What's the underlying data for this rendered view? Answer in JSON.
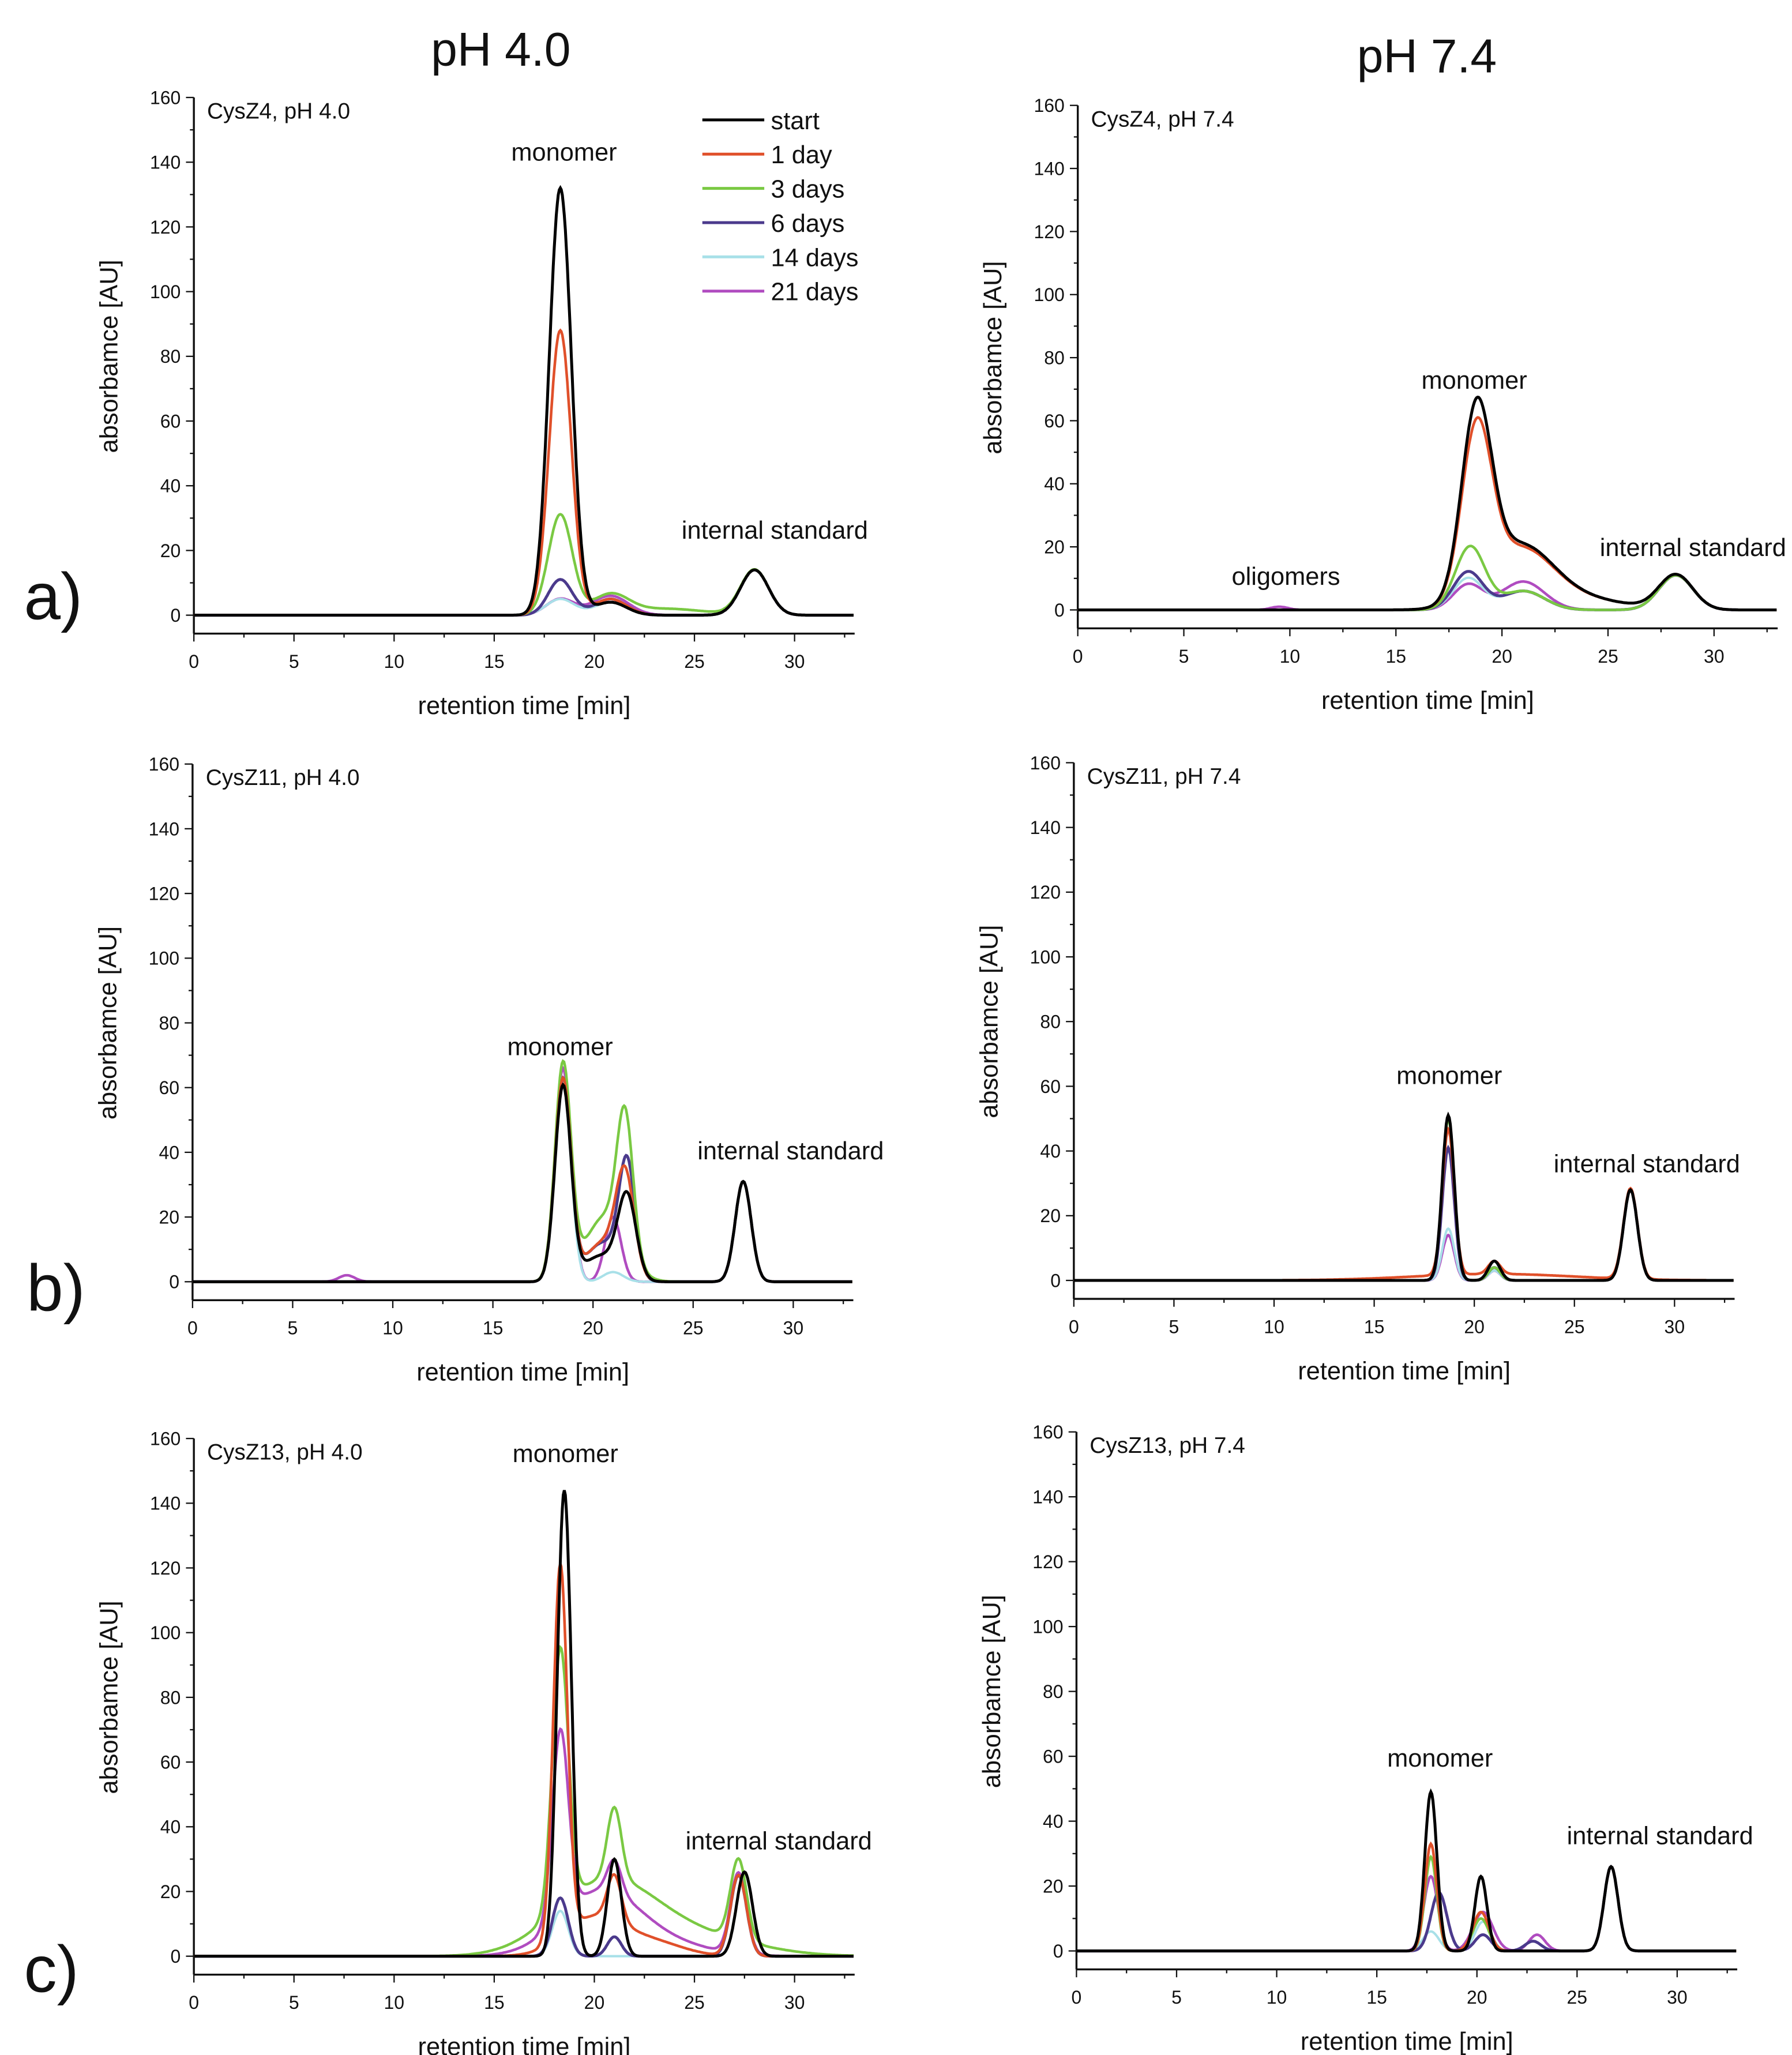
{
  "headers": [
    "pH 4.0",
    "pH 7.4"
  ],
  "panel_labels": [
    "a)",
    "b)",
    "c)"
  ],
  "legend": [
    {
      "name": "start",
      "color": "#000000"
    },
    {
      "name": "1 day",
      "color": "#e0502a"
    },
    {
      "name": "3 days",
      "color": "#7ac943"
    },
    {
      "name": "6 days",
      "color": "#4b3a8c"
    },
    {
      "name": "14 days",
      "color": "#a8e0e8"
    },
    {
      "name": "21 days",
      "color": "#b04cc0"
    }
  ],
  "chart_data": [
    {
      "type": "line",
      "title": "CysZ4, pH 4.0",
      "xlabel": "retention time [min]",
      "ylabel": "absorbamce [AU]",
      "xlim": [
        0,
        33
      ],
      "ylim": [
        0,
        160
      ],
      "xticks": [
        0,
        5,
        10,
        15,
        20,
        25,
        30
      ],
      "yticks": [
        0,
        20,
        40,
        60,
        80,
        100,
        120,
        140,
        160
      ],
      "annotations": [
        "monomer",
        "internal standard"
      ],
      "series": [
        {
          "name": "start",
          "peaks": [
            [
              18.3,
              132,
              0.55
            ],
            [
              20.8,
              4,
              0.8
            ],
            [
              28,
              14,
              0.7
            ]
          ]
        },
        {
          "name": "1 day",
          "peaks": [
            [
              18.3,
              88,
              0.55
            ],
            [
              20.8,
              5,
              0.8
            ],
            [
              28,
              14,
              0.7
            ]
          ]
        },
        {
          "name": "3 days",
          "peaks": [
            [
              18.3,
              31,
              0.6
            ],
            [
              20.8,
              6,
              0.9
            ],
            [
              23.5,
              2,
              2
            ],
            [
              28,
              14,
              0.7
            ]
          ]
        },
        {
          "name": "6 days",
          "peaks": [
            [
              18.3,
              11,
              0.6
            ],
            [
              20.8,
              5,
              0.8
            ],
            [
              28,
              14,
              0.7
            ]
          ]
        },
        {
          "name": "14 days",
          "peaks": [
            [
              18.3,
              5,
              0.7
            ],
            [
              20.8,
              4,
              0.8
            ],
            [
              28,
              14,
              0.7
            ]
          ]
        },
        {
          "name": "21 days",
          "peaks": [
            [
              18.3,
              5,
              0.7
            ],
            [
              20.8,
              6,
              0.9
            ],
            [
              28,
              14,
              0.7
            ]
          ]
        }
      ]
    },
    {
      "type": "line",
      "title": "CysZ4, pH 7.4",
      "xlabel": "retention time [min]",
      "ylabel": "absorbamce [AU]",
      "xlim": [
        0,
        33
      ],
      "ylim": [
        0,
        160
      ],
      "xticks": [
        0,
        5,
        10,
        15,
        20,
        25,
        30
      ],
      "yticks": [
        0,
        20,
        40,
        60,
        80,
        100,
        120,
        140,
        160
      ],
      "annotations": [
        "monomer",
        "oligomers",
        "internal standard"
      ],
      "series": [
        {
          "name": "start",
          "peaks": [
            [
              18.8,
              58,
              0.7
            ],
            [
              20.8,
              20,
              1.6
            ],
            [
              24,
              3,
              2
            ],
            [
              28.2,
              11,
              0.8
            ]
          ]
        },
        {
          "name": "1 day",
          "peaks": [
            [
              18.8,
              52,
              0.7
            ],
            [
              20.8,
              19,
              1.6
            ],
            [
              24,
              3,
              2
            ],
            [
              28.2,
              11,
              0.8
            ]
          ]
        },
        {
          "name": "3 days",
          "peaks": [
            [
              18.5,
              20,
              0.7
            ],
            [
              21,
              6,
              1
            ],
            [
              28.2,
              11,
              0.8
            ]
          ]
        },
        {
          "name": "6 days",
          "peaks": [
            [
              18.4,
              12,
              0.7
            ],
            [
              21,
              6,
              1
            ],
            [
              28.2,
              11,
              0.8
            ]
          ]
        },
        {
          "name": "14 days",
          "peaks": [
            [
              18.4,
              10,
              0.7
            ],
            [
              21,
              6,
              1
            ],
            [
              28.2,
              11,
              0.8
            ]
          ]
        },
        {
          "name": "21 days",
          "peaks": [
            [
              9.5,
              1,
              0.4
            ],
            [
              18.4,
              8,
              0.7
            ],
            [
              21,
              9,
              1
            ],
            [
              28.2,
              11,
              0.8
            ]
          ]
        }
      ]
    },
    {
      "type": "line",
      "title": "CysZ11, pH 4.0",
      "xlabel": "retention time [min]",
      "ylabel": "absorbamce [AU]",
      "xlim": [
        0,
        33
      ],
      "ylim": [
        0,
        160
      ],
      "xticks": [
        0,
        5,
        10,
        15,
        20,
        25,
        30
      ],
      "yticks": [
        0,
        20,
        40,
        60,
        80,
        100,
        120,
        140,
        160
      ],
      "annotations": [
        "monomer",
        "internal standard"
      ],
      "series": [
        {
          "name": "start",
          "peaks": [
            [
              18.5,
              60,
              0.4
            ],
            [
              20.4,
              8,
              0.9
            ],
            [
              21.7,
              25,
              0.45
            ],
            [
              27.5,
              31,
              0.4
            ]
          ]
        },
        {
          "name": "1 day",
          "peaks": [
            [
              18.5,
              62,
              0.4
            ],
            [
              20.5,
              12,
              0.9
            ],
            [
              21.6,
              30,
              0.45
            ],
            [
              27.5,
              31,
              0.4
            ]
          ]
        },
        {
          "name": "3 days",
          "peaks": [
            [
              18.5,
              66,
              0.4
            ],
            [
              20.6,
              20,
              1
            ],
            [
              21.6,
              42,
              0.4
            ],
            [
              27.5,
              31,
              0.4
            ]
          ]
        },
        {
          "name": "6 days",
          "peaks": [
            [
              18.5,
              62,
              0.4
            ],
            [
              20.5,
              12,
              0.9
            ],
            [
              21.7,
              34,
              0.4
            ],
            [
              27.5,
              31,
              0.4
            ]
          ]
        },
        {
          "name": "14 days",
          "peaks": [
            [
              18.5,
              61,
              0.4
            ],
            [
              21,
              3,
              0.5
            ],
            [
              27.5,
              31,
              0.4
            ]
          ]
        },
        {
          "name": "21 days",
          "peaks": [
            [
              7.7,
              2,
              0.4
            ],
            [
              18.5,
              66,
              0.4
            ],
            [
              21,
              20,
              0.4
            ],
            [
              27.5,
              31,
              0.4
            ]
          ]
        }
      ]
    },
    {
      "type": "line",
      "title": "CysZ11, pH 7.4",
      "xlabel": "retention time [min]",
      "ylabel": "absorbamce [AU]",
      "xlim": [
        0,
        33
      ],
      "ylim": [
        0,
        160
      ],
      "xticks": [
        0,
        5,
        10,
        15,
        20,
        25,
        30
      ],
      "yticks": [
        0,
        20,
        40,
        60,
        80,
        100,
        120,
        140,
        160
      ],
      "annotations": [
        "monomer",
        "internal standard"
      ],
      "series": [
        {
          "name": "start",
          "peaks": [
            [
              18.7,
              51,
              0.3
            ],
            [
              21,
              6,
              0.3
            ],
            [
              27.8,
              28,
              0.35
            ]
          ]
        },
        {
          "name": "1 day",
          "peaks": [
            [
              18.7,
              45,
              0.3
            ],
            [
              21,
              4,
              0.3
            ],
            [
              21,
              2,
              4
            ],
            [
              27.8,
              28,
              0.35
            ]
          ]
        },
        {
          "name": "3 days",
          "peaks": [
            [
              18.7,
              50,
              0.3
            ],
            [
              21,
              4,
              0.3
            ],
            [
              27.8,
              28,
              0.35
            ]
          ]
        },
        {
          "name": "6 days",
          "peaks": [
            [
              18.7,
              41,
              0.3
            ],
            [
              21,
              4,
              0.3
            ],
            [
              27.8,
              28,
              0.35
            ]
          ]
        },
        {
          "name": "14 days",
          "peaks": [
            [
              18.7,
              16,
              0.3
            ],
            [
              21,
              3,
              0.3
            ],
            [
              27.8,
              28,
              0.35
            ]
          ]
        },
        {
          "name": "21 days",
          "peaks": [
            [
              18.7,
              14,
              0.3
            ],
            [
              21,
              3,
              0.3
            ],
            [
              27.8,
              28,
              0.35
            ]
          ]
        }
      ]
    },
    {
      "type": "line",
      "title": "CysZ13, pH 4.0",
      "xlabel": "retention time [min]",
      "ylabel": "absorbamce [AU]",
      "xlim": [
        0,
        33
      ],
      "ylim": [
        0,
        160
      ],
      "xticks": [
        0,
        5,
        10,
        15,
        20,
        25,
        30
      ],
      "yticks": [
        0,
        20,
        40,
        60,
        80,
        100,
        120,
        140,
        160
      ],
      "annotations": [
        "monomer",
        "internal standard"
      ],
      "series": [
        {
          "name": "start",
          "peaks": [
            [
              18.5,
              144,
              0.35
            ],
            [
              21,
              30,
              0.35
            ],
            [
              27.5,
              26,
              0.4
            ]
          ]
        },
        {
          "name": "1 day",
          "peaks": [
            [
              18.3,
              115,
              0.35
            ],
            [
              20,
              12,
              1.5
            ],
            [
              21,
              14,
              0.35
            ],
            [
              23,
              4,
              1.5
            ],
            [
              27.2,
              25,
              0.4
            ]
          ]
        },
        {
          "name": "3 days",
          "peaks": [
            [
              18.3,
              80,
              0.4
            ],
            [
              20.5,
              22,
              2.5
            ],
            [
              21,
              22,
              0.35
            ],
            [
              25,
              6,
              3
            ],
            [
              27.2,
              25,
              0.4
            ]
          ]
        },
        {
          "name": "6 days",
          "peaks": [
            [
              18.3,
              18,
              0.4
            ],
            [
              21,
              6,
              0.35
            ],
            [
              27.2,
              25,
              0.4
            ]
          ]
        },
        {
          "name": "14 days",
          "peaks": [
            [
              18.3,
              14,
              0.4
            ],
            [
              27.2,
              25,
              0.4
            ]
          ]
        },
        {
          "name": "21 days",
          "peaks": [
            [
              18.3,
              58,
              0.4
            ],
            [
              20.3,
              20,
              2
            ],
            [
              21,
              10,
              0.35
            ],
            [
              24,
              3,
              2
            ],
            [
              27.2,
              25,
              0.4
            ]
          ]
        }
      ]
    },
    {
      "type": "line",
      "title": "CysZ13, pH 7.4",
      "xlabel": "retention time [min]",
      "ylabel": "absorbamce [AU]",
      "xlim": [
        0,
        33
      ],
      "ylim": [
        0,
        160
      ],
      "xticks": [
        0,
        5,
        10,
        15,
        20,
        25,
        30
      ],
      "yticks": [
        0,
        20,
        40,
        60,
        80,
        100,
        120,
        140,
        160
      ],
      "annotations": [
        "monomer",
        "internal standard"
      ],
      "series": [
        {
          "name": "start",
          "peaks": [
            [
              17.7,
              49,
              0.3
            ],
            [
              20.2,
              23,
              0.3
            ],
            [
              26.7,
              26,
              0.35
            ]
          ]
        },
        {
          "name": "1 day",
          "peaks": [
            [
              17.7,
              33,
              0.3
            ],
            [
              20.2,
              12,
              0.4
            ],
            [
              26.7,
              26,
              0.35
            ]
          ]
        },
        {
          "name": "3 days",
          "peaks": [
            [
              17.7,
              29,
              0.3
            ],
            [
              20.2,
              10,
              0.4
            ],
            [
              26.7,
              26,
              0.35
            ]
          ]
        },
        {
          "name": "6 days",
          "peaks": [
            [
              18.1,
              18,
              0.4
            ],
            [
              20.3,
              5,
              0.4
            ],
            [
              22.8,
              3,
              0.4
            ],
            [
              26.7,
              26,
              0.35
            ]
          ]
        },
        {
          "name": "14 days",
          "peaks": [
            [
              17.7,
              6,
              0.4
            ],
            [
              20.3,
              9,
              0.4
            ],
            [
              26.7,
              26,
              0.35
            ]
          ]
        },
        {
          "name": "21 days",
          "peaks": [
            [
              17.7,
              23,
              0.35
            ],
            [
              20.3,
              12,
              0.5
            ],
            [
              23,
              5,
              0.4
            ],
            [
              26.7,
              26,
              0.35
            ]
          ]
        }
      ]
    }
  ]
}
